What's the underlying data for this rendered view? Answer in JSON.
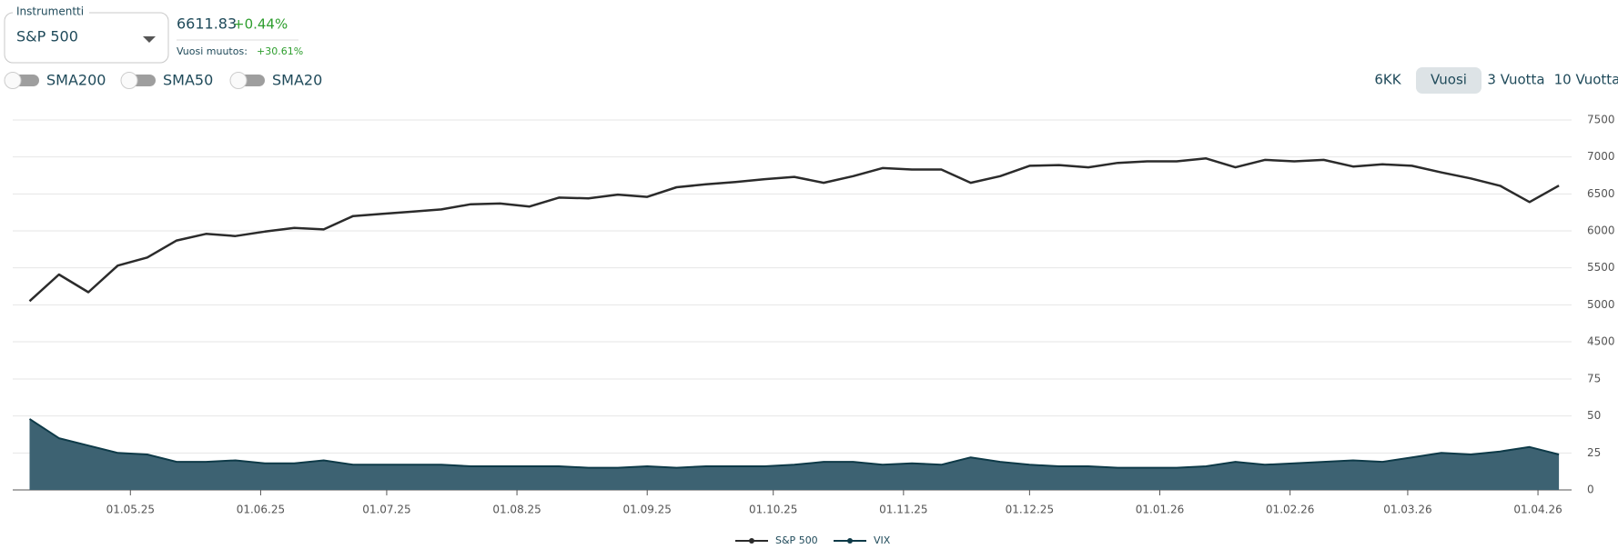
{
  "instrument_selector": {
    "label": "Instrumentti",
    "value": "S&P 500"
  },
  "quote": {
    "price": "6611.83",
    "change": "+0.44%",
    "year_change_label": "Vuosi muutos:",
    "year_change": "+30.61%"
  },
  "toggles": [
    "SMA200",
    "SMA50",
    "SMA20"
  ],
  "range_buttons": [
    "6KK",
    "Vuosi",
    "3 Vuotta",
    "10 Vuotta"
  ],
  "selected_range": "Vuosi",
  "chart_data": [
    {
      "type": "line",
      "x": [
        "2025-04-07",
        "2025-04-14",
        "2025-04-21",
        "2025-04-28",
        "2025-05-05",
        "2025-05-12",
        "2025-05-19",
        "2025-05-26",
        "2025-06-02",
        "2025-06-09",
        "2025-06-16",
        "2025-06-23",
        "2025-06-30",
        "2025-07-07",
        "2025-07-14",
        "2025-07-21",
        "2025-07-28",
        "2025-08-04",
        "2025-08-11",
        "2025-08-18",
        "2025-08-25",
        "2025-09-01",
        "2025-09-08",
        "2025-09-15",
        "2025-09-22",
        "2025-09-29",
        "2025-10-06",
        "2025-10-13",
        "2025-10-20",
        "2025-10-27",
        "2025-11-03",
        "2025-11-10",
        "2025-11-17",
        "2025-11-24",
        "2025-12-01",
        "2025-12-08",
        "2025-12-15",
        "2025-12-22",
        "2025-12-29",
        "2026-01-05",
        "2026-01-12",
        "2026-01-19",
        "2026-01-26",
        "2026-02-02",
        "2026-02-09",
        "2026-02-16",
        "2026-02-23",
        "2026-03-02",
        "2026-03-09",
        "2026-03-16",
        "2026-03-23",
        "2026-03-30",
        "2026-04-06"
      ],
      "xlim": [
        "2025-04-03",
        "2026-04-09"
      ],
      "series": [
        {
          "name": "S&P 500",
          "color": "#2b2b2b",
          "values": [
            5050,
            5410,
            5170,
            5530,
            5640,
            5870,
            5960,
            5930,
            5990,
            6040,
            6020,
            6200,
            6230,
            6260,
            6290,
            6360,
            6370,
            6330,
            6450,
            6440,
            6490,
            6460,
            6590,
            6630,
            6660,
            6700,
            6730,
            6650,
            6740,
            6850,
            6830,
            6830,
            6650,
            6740,
            6880,
            6890,
            6860,
            6920,
            6940,
            6940,
            6980,
            6860,
            6960,
            6940,
            6960,
            6870,
            6900,
            6880,
            6790,
            6710,
            6610,
            6390,
            6611.83
          ]
        }
      ],
      "ylim": [
        4500,
        7500
      ],
      "yticks": [
        4500,
        5000,
        5500,
        6000,
        6500,
        7000,
        7500
      ],
      "grid": true
    },
    {
      "type": "area",
      "x": [
        "2025-04-07",
        "2025-04-14",
        "2025-04-21",
        "2025-04-28",
        "2025-05-05",
        "2025-05-12",
        "2025-05-19",
        "2025-05-26",
        "2025-06-02",
        "2025-06-09",
        "2025-06-16",
        "2025-06-23",
        "2025-06-30",
        "2025-07-07",
        "2025-07-14",
        "2025-07-21",
        "2025-07-28",
        "2025-08-04",
        "2025-08-11",
        "2025-08-18",
        "2025-08-25",
        "2025-09-01",
        "2025-09-08",
        "2025-09-15",
        "2025-09-22",
        "2025-09-29",
        "2025-10-06",
        "2025-10-13",
        "2025-10-20",
        "2025-10-27",
        "2025-11-03",
        "2025-11-10",
        "2025-11-17",
        "2025-11-24",
        "2025-12-01",
        "2025-12-08",
        "2025-12-15",
        "2025-12-22",
        "2025-12-29",
        "2026-01-05",
        "2026-01-12",
        "2026-01-19",
        "2026-01-26",
        "2026-02-02",
        "2026-02-09",
        "2026-02-16",
        "2026-02-23",
        "2026-03-02",
        "2026-03-09",
        "2026-03-16",
        "2026-03-23",
        "2026-03-30",
        "2026-04-06"
      ],
      "xlim": [
        "2025-04-03",
        "2026-04-09"
      ],
      "xticks": [
        {
          "value": "2025-05-01",
          "label": "01.05.25"
        },
        {
          "value": "2025-06-01",
          "label": "01.06.25"
        },
        {
          "value": "2025-07-01",
          "label": "01.07.25"
        },
        {
          "value": "2025-08-01",
          "label": "01.08.25"
        },
        {
          "value": "2025-09-01",
          "label": "01.09.25"
        },
        {
          "value": "2025-10-01",
          "label": "01.10.25"
        },
        {
          "value": "2025-11-01",
          "label": "01.11.25"
        },
        {
          "value": "2025-12-01",
          "label": "01.12.25"
        },
        {
          "value": "2026-01-01",
          "label": "01.01.26"
        },
        {
          "value": "2026-02-01",
          "label": "01.02.26"
        },
        {
          "value": "2026-03-01",
          "label": "01.03.26"
        },
        {
          "value": "2026-04-01",
          "label": "01.04.26"
        }
      ],
      "series": [
        {
          "name": "VIX",
          "color": "#0e3a48",
          "fill": "#3d6272",
          "values": [
            48,
            35,
            30,
            25,
            24,
            19,
            19,
            20,
            18,
            18,
            20,
            17,
            17,
            17,
            17,
            16,
            16,
            16,
            16,
            15,
            15,
            16,
            15,
            16,
            16,
            16,
            17,
            19,
            19,
            17,
            18,
            17,
            22,
            19,
            17,
            16,
            16,
            15,
            15,
            15,
            16,
            19,
            17,
            18,
            19,
            20,
            19,
            22,
            25,
            24,
            26,
            29,
            24
          ]
        }
      ],
      "ylim": [
        0,
        75
      ],
      "yticks": [
        0,
        25,
        50,
        75
      ],
      "grid": true
    }
  ]
}
